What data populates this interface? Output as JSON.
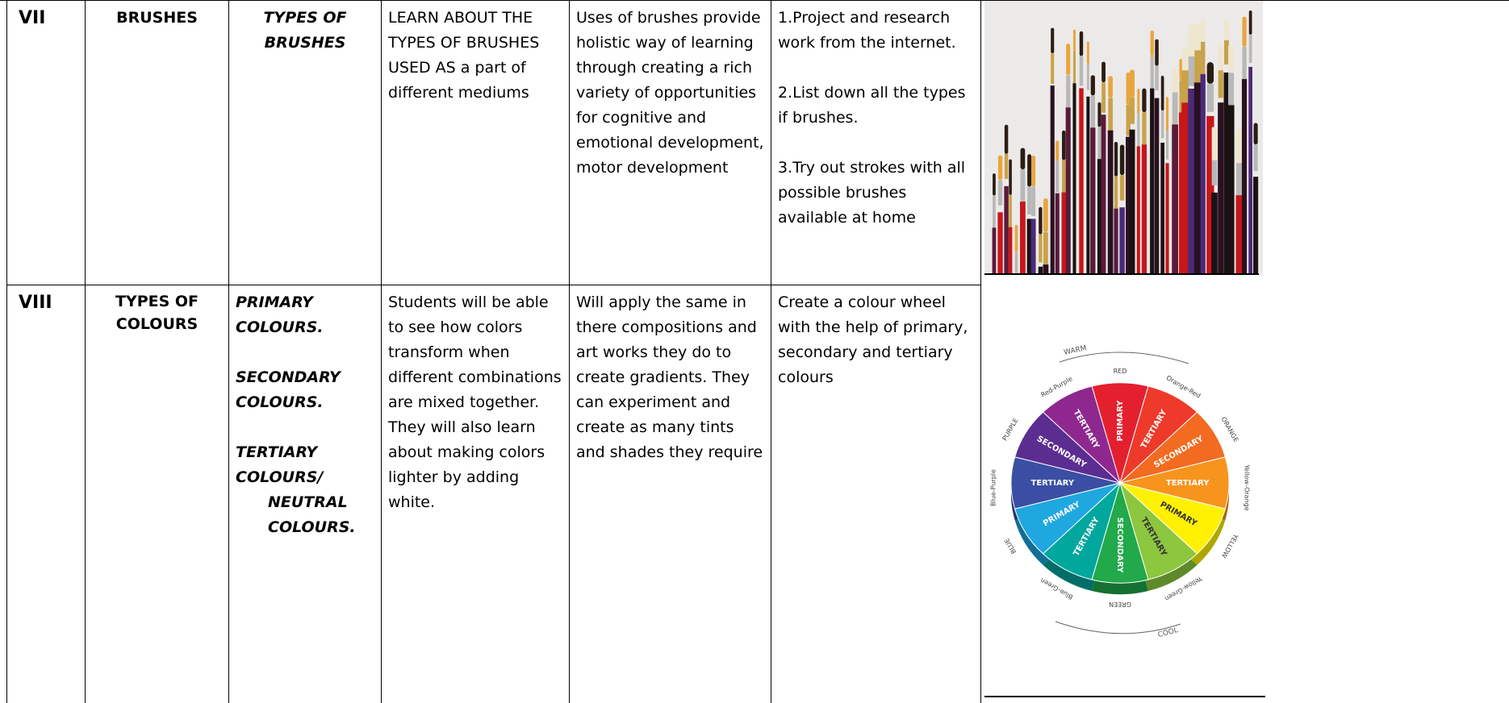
{
  "table": {
    "rows": [
      {
        "number": "VII",
        "topic": "BRUSHES",
        "subtopics": [
          "TYPES OF BRUSHES"
        ],
        "objective": "LEARN ABOUT THE TYPES OF BRUSHES USED AS a part of different mediums",
        "outcome": "Uses of brushes provide holistic way of learning through creating a rich variety of opportunities for cognitive and emotional development, motor development",
        "activities": [
          "1.Project and research work from the internet.",
          "2.List down all the types if brushes.",
          "3.Try out strokes with all possible brushes available at home"
        ]
      },
      {
        "number": "VIII",
        "topic": "TYPES OF COLOURS",
        "subtopics": [
          "PRIMARY COLOURS.",
          "SECONDARY COLOURS.",
          "TERTIARY COLOURS/",
          "NEUTRAL COLOURS."
        ],
        "objective": "Students will be able to see how colors transform when different combinations are mixed together. They will also learn about making colors lighter by adding white.",
        "outcome": "Will apply the same in there compositions and art works they do to create gradients. They can experiment and create as many tints and shades they require",
        "activities": [
          "Create a colour wheel with the help of primary, secondary and tertiary colours"
        ],
        "wheel": {
          "warm": "WARM",
          "cool": "COOL",
          "names": [
            "RED",
            "Orange-Red",
            "ORANGE",
            "Yellow-Orange",
            "YELLOW",
            "Yellow-Green",
            "GREEN",
            "Blue-Green",
            "BLUE",
            "Blue-Purple",
            "PURPLE",
            "Red-Purple"
          ],
          "kinds": [
            "PRIMARY",
            "TERTIARY",
            "SECONDARY",
            "TERTIARY",
            "PRIMARY",
            "TERTIARY",
            "SECONDARY",
            "TERTIARY",
            "PRIMARY",
            "TERTIARY",
            "SECONDARY",
            "TERTIARY"
          ]
        }
      }
    ]
  }
}
